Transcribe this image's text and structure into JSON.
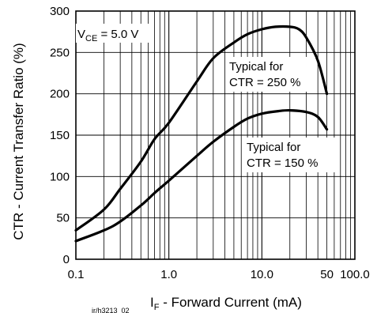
{
  "chart_data": {
    "type": "line",
    "x_scale": "log",
    "xlim": [
      0.1,
      100
    ],
    "ylim": [
      0,
      300
    ],
    "grid": true,
    "y_ticks": [
      0,
      50,
      100,
      150,
      200,
      250,
      300
    ],
    "x_tick_labels": [
      {
        "value": 0.1,
        "label": "0.1"
      },
      {
        "value": 1,
        "label": "1.0"
      },
      {
        "value": 10,
        "label": "10.0"
      },
      {
        "value": 50,
        "label": "50"
      },
      {
        "value": 100,
        "label": "100.0"
      }
    ],
    "xlabel": {
      "main": "I",
      "sub": "F",
      "rest": " - Forward Current (mA)"
    },
    "ylabel": "CTR - Current Transfer Ratio (%)",
    "condition": {
      "main": "V",
      "sub": "CE",
      "rest": " = 5.0 V"
    },
    "series": [
      {
        "name": "Typical for CTR = 250 %",
        "label_lines": [
          "Typical for",
          "CTR = 250 %"
        ],
        "points": [
          [
            0.1,
            35
          ],
          [
            0.2,
            60
          ],
          [
            0.3,
            85
          ],
          [
            0.5,
            118
          ],
          [
            0.7,
            145
          ],
          [
            1.0,
            165
          ],
          [
            2.0,
            215
          ],
          [
            3.0,
            243
          ],
          [
            5.0,
            262
          ],
          [
            7.0,
            272
          ],
          [
            10.0,
            278
          ],
          [
            14.0,
            281
          ],
          [
            20.0,
            281
          ],
          [
            25.0,
            278
          ],
          [
            30.0,
            268
          ],
          [
            40.0,
            240
          ],
          [
            50.0,
            200
          ]
        ]
      },
      {
        "name": "Typical for CTR = 150 %",
        "label_lines": [
          "Typical for",
          "CTR = 150 %"
        ],
        "points": [
          [
            0.1,
            22
          ],
          [
            0.25,
            40
          ],
          [
            0.5,
            65
          ],
          [
            0.7,
            80
          ],
          [
            1.0,
            95
          ],
          [
            2.0,
            125
          ],
          [
            3.0,
            142
          ],
          [
            5.0,
            160
          ],
          [
            7.0,
            170
          ],
          [
            10.0,
            176
          ],
          [
            15.0,
            179
          ],
          [
            20.0,
            180
          ],
          [
            30.0,
            178
          ],
          [
            40.0,
            172
          ],
          [
            50.0,
            157
          ]
        ]
      }
    ],
    "footnote": "ir/h3213_02"
  }
}
